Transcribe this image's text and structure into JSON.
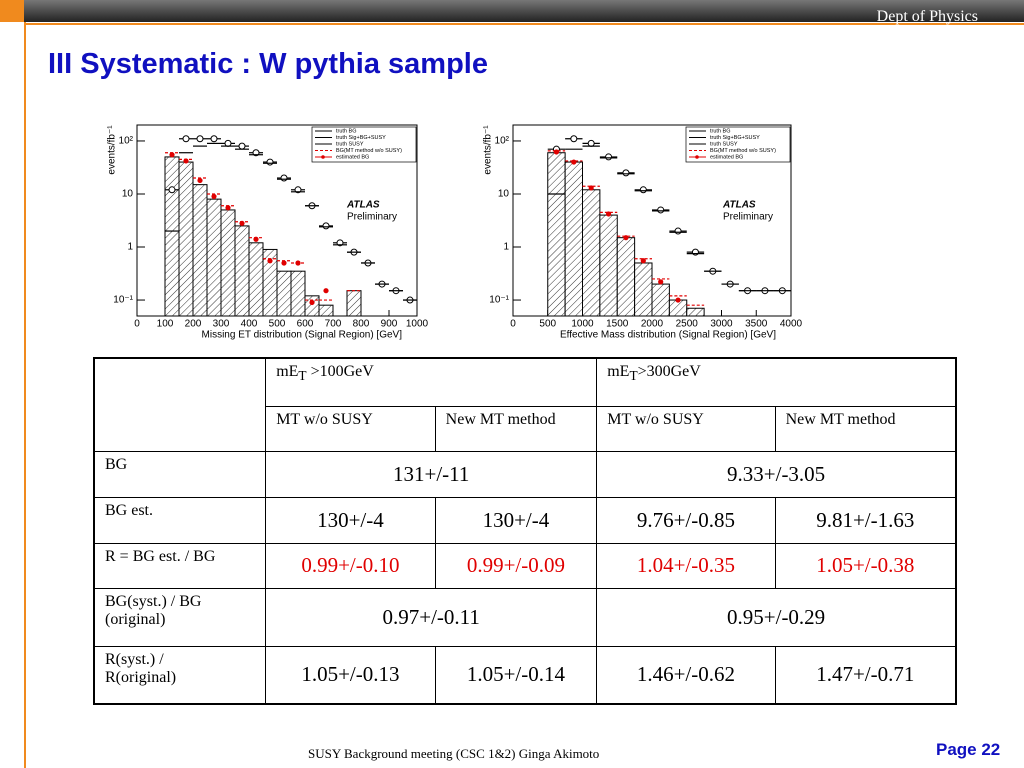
{
  "header": {
    "dept": "Dept of Physics",
    "title": "III Systematic : W pythia sample"
  },
  "chart_data": [
    {
      "type": "histogram",
      "y_label": "events/fb⁻¹",
      "x_label": "Missing  ET distribution (Signal Region) [GeV]",
      "annotation": "ATLAS",
      "annotation2": "Preliminary",
      "log_y": true,
      "bins": [
        100,
        150,
        200,
        250,
        300,
        350,
        400,
        450,
        500,
        550,
        600,
        650,
        700,
        750,
        800,
        850,
        900,
        950,
        1000
      ],
      "xlim": [
        0,
        1000
      ],
      "xticks": [
        0,
        100,
        200,
        300,
        400,
        500,
        600,
        700,
        800,
        900,
        1000
      ],
      "ylim": [
        0.05,
        200
      ],
      "yticks": [
        {
          "value": 0.1,
          "label": "10⁻¹"
        },
        1,
        10,
        {
          "value": 100,
          "label": "10²"
        }
      ],
      "series": [
        {
          "name": "truth BG",
          "color": "#000000",
          "values": [
            50,
            40,
            15,
            8,
            5,
            2.5,
            1.2,
            0.9,
            0.35,
            0.35,
            0.12,
            0.08,
            null,
            0.15,
            null,
            null,
            null,
            null
          ]
        },
        {
          "name": "truth Sig+BG+SUSY",
          "color": "#000000",
          "values": [
            12,
            110,
            110,
            110,
            90,
            80,
            60,
            40,
            20,
            12,
            6,
            2.5,
            1.2,
            0.8,
            0.5,
            0.2,
            0.15,
            0.1
          ]
        },
        {
          "name": "truth SUSY",
          "color": "#000000",
          "values": [
            2,
            60,
            80,
            90,
            80,
            70,
            55,
            38,
            19,
            11,
            6,
            2.4,
            1.1,
            0.8,
            0.5,
            0.2,
            0.15,
            0.1
          ]
        },
        {
          "name": "BG(MT method w/o SUSY)",
          "color": "#e00000",
          "values": [
            60,
            45,
            20,
            10,
            6,
            3,
            1.5,
            0.6,
            0.55,
            0.5,
            0.1,
            0.1,
            null,
            0.15,
            null,
            null,
            null,
            null
          ]
        },
        {
          "name": "estimated BG",
          "color": "#e00000",
          "values": [
            55,
            42,
            18,
            9,
            5.5,
            2.8,
            1.4,
            0.55,
            0.5,
            0.5,
            0.09,
            0.15,
            null,
            null,
            null,
            null,
            null,
            null
          ]
        }
      ]
    },
    {
      "type": "histogram",
      "y_label": "events/fb⁻¹",
      "x_label": "Effective  Mass   distribution (Signal Region) [GeV]",
      "annotation": "ATLAS",
      "annotation2": "Preliminary",
      "log_y": true,
      "bins": [
        500,
        750,
        1000,
        1250,
        1500,
        1750,
        2000,
        2250,
        2500,
        2750,
        3000,
        3250,
        3500,
        3750,
        4000
      ],
      "xlim": [
        0,
        4000
      ],
      "xticks": [
        0,
        500,
        1000,
        1500,
        2000,
        2500,
        3000,
        3500,
        4000
      ],
      "ylim": [
        0.05,
        200
      ],
      "yticks": [
        {
          "value": 0.1,
          "label": "10⁻¹"
        },
        1,
        10,
        {
          "value": 100,
          "label": "10²"
        }
      ],
      "series": [
        {
          "name": "truth BG",
          "color": "#000000",
          "values": [
            60,
            40,
            12,
            4,
            1.5,
            0.5,
            0.2,
            0.1,
            0.07,
            null,
            null,
            null,
            null,
            null
          ]
        },
        {
          "name": "truth Sig+BG+SUSY",
          "color": "#000000",
          "values": [
            70,
            110,
            90,
            50,
            25,
            12,
            5,
            2,
            0.8,
            0.35,
            0.2,
            0.15,
            0.15,
            0.15
          ]
        },
        {
          "name": "truth SUSY",
          "color": "#000000",
          "values": [
            10,
            70,
            80,
            48,
            24,
            11.5,
            4.8,
            1.9,
            0.75,
            0.35,
            0.2,
            0.15,
            0.15,
            0.15
          ]
        },
        {
          "name": "BG(MT method w/o SUSY)",
          "color": "#e00000",
          "values": [
            65,
            42,
            14,
            4.5,
            1.6,
            0.6,
            0.25,
            0.12,
            0.08,
            null,
            null,
            null,
            null,
            null
          ]
        },
        {
          "name": "estimated BG",
          "color": "#e00000",
          "values": [
            62,
            40,
            13,
            4.2,
            1.5,
            0.55,
            0.22,
            0.1,
            null,
            null,
            null,
            null,
            null,
            null
          ]
        }
      ]
    }
  ],
  "table": {
    "header": [
      {
        "main": "mE",
        "sub": "T",
        "rest": " >100GeV"
      },
      {
        "main": "mE",
        "sub": "T",
        "rest": ">300GeV"
      }
    ],
    "subheader": [
      "MT w/o SUSY",
      "New MT method",
      "MT w/o SUSY",
      "New MT method"
    ],
    "rows": [
      {
        "label": [
          "BG"
        ],
        "cells": [
          "131+/-11",
          "9.33+/-3.05"
        ]
      },
      {
        "label": [
          "BG est."
        ],
        "cells": [
          "130+/-4",
          "130+/-4",
          "9.76+/-0.85",
          "9.81+/-1.63"
        ]
      },
      {
        "label": [
          "R = BG est. / BG"
        ],
        "cells": [
          "0.99+/-0.10",
          "0.99+/-0.09",
          "1.04+/-0.35",
          "1.05+/-0.38"
        ]
      },
      {
        "label": [
          "BG(syst.) / BG",
          "(original)"
        ],
        "cells": [
          "0.97+/-0.11",
          "0.95+/-0.29"
        ]
      },
      {
        "label": [
          " R(syst.) /",
          "R(original)"
        ],
        "cells": [
          "1.05+/-0.13",
          "1.05+/-0.14",
          "1.46+/-0.62",
          "1.47+/-0.71"
        ]
      }
    ]
  },
  "footer": {
    "meeting": "SUSY Background meeting  (CSC 1&2) Ginga Akimoto",
    "page": "Page 22"
  }
}
